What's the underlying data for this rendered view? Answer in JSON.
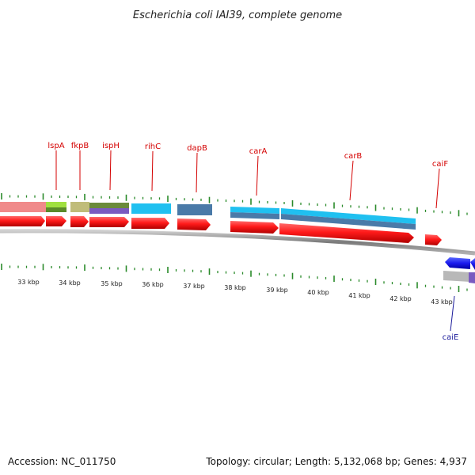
{
  "title": "Escherichia coli IAI39, complete genome",
  "footer": {
    "accession": "Accession: NC_011750",
    "info": "Topology: circular; Length: 5,132,068 bp; Genes: 4,937"
  },
  "ticks": [
    "33 kbp",
    "34 kbp",
    "35 kbp",
    "36 kbp",
    "37 kbp",
    "38 kbp",
    "39 kbp",
    "40 kbp",
    "41 kbp",
    "42 kbp",
    "43 kbp"
  ],
  "genes_plus": [
    {
      "name": "lspA"
    },
    {
      "name": "fkpB"
    },
    {
      "name": "ispH"
    },
    {
      "name": "rihC"
    },
    {
      "name": "dapB"
    },
    {
      "name": "carA"
    },
    {
      "name": "carB"
    },
    {
      "name": "caiF"
    }
  ],
  "genes_minus": [
    {
      "name": "caiE"
    }
  ],
  "colors": {
    "forward_gene": "#ff1a1a",
    "reverse_gene": "#1a1aee",
    "backbone": "#8a8a8a",
    "tick": "#2a8a2a",
    "label_plus": "#d40000",
    "label_minus": "#1a1a9a"
  }
}
